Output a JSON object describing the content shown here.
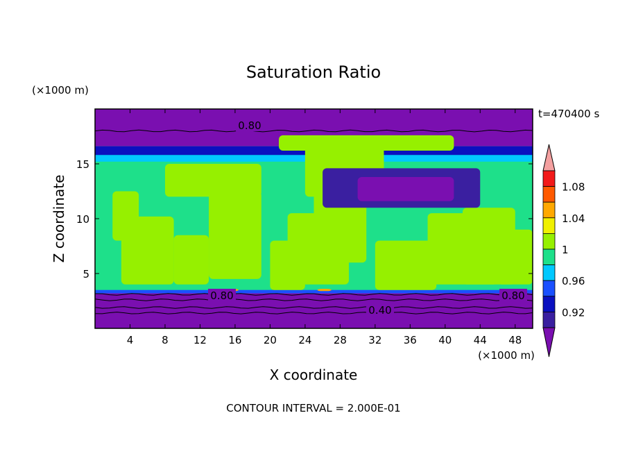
{
  "chart_data": {
    "type": "heatmap",
    "title": "Saturation Ratio",
    "xlabel": "X coordinate",
    "ylabel": "Z coordinate",
    "x_unit": "(×1000 m)",
    "y_unit": "(×1000 m)",
    "time_label": "t=470400 s",
    "footer": "CONTOUR INTERVAL = 2.000E-01",
    "xlim": [
      0,
      50
    ],
    "ylim": [
      0,
      20
    ],
    "x_ticks": [
      "4",
      "8",
      "12",
      "16",
      "20",
      "24",
      "28",
      "32",
      "36",
      "40",
      "44",
      "48"
    ],
    "y_ticks": [
      "5",
      "10",
      "15"
    ],
    "colorbar": {
      "labels": [
        "0.92",
        "0.96",
        "1",
        "1.04",
        "1.08"
      ],
      "levels": [
        0.9,
        0.92,
        0.94,
        0.96,
        0.98,
        1.0,
        1.02,
        1.04,
        1.06,
        1.08,
        1.1
      ],
      "colors": [
        "#7a0fb0",
        "#3a1fa0",
        "#0a10c0",
        "#1a50ff",
        "#00c8ff",
        "#1ee08a",
        "#96f000",
        "#f0f000",
        "#ffa800",
        "#ff5a00",
        "#f21a1a",
        "#f4a0a0"
      ],
      "extend": "both"
    },
    "contour_labels": [
      "0.80",
      "0.80",
      "0.80",
      "0.40"
    ],
    "contour_lines_y": [
      18.0,
      3.1,
      2.6,
      1.9,
      1.4
    ]
  }
}
